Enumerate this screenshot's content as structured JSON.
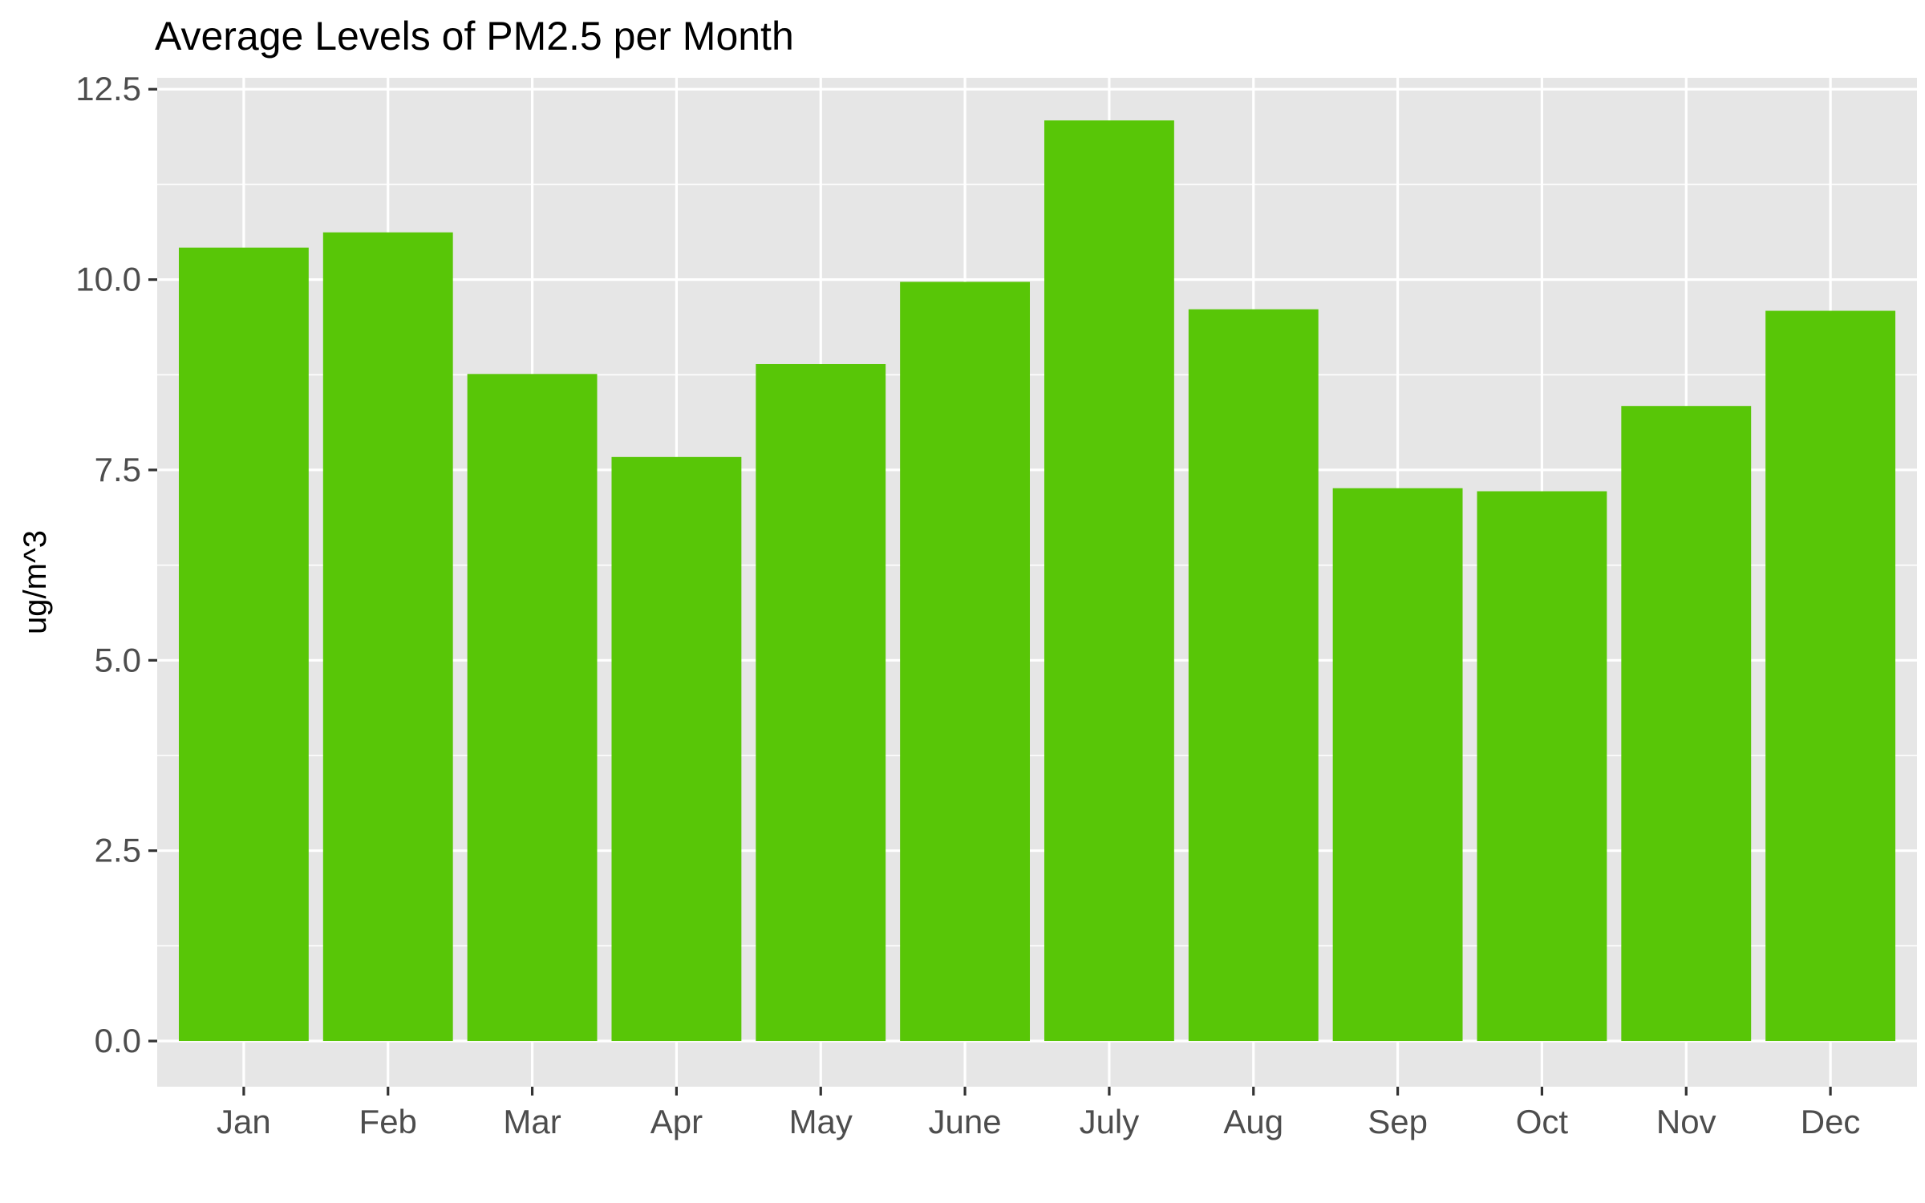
{
  "chart_data": {
    "type": "bar",
    "title": "Average Levels of PM2.5 per Month",
    "xlabel": "",
    "ylabel": "ug/m^3",
    "categories": [
      "Jan",
      "Feb",
      "Mar",
      "Apr",
      "May",
      "June",
      "July",
      "Aug",
      "Sep",
      "Oct",
      "Nov",
      "Dec"
    ],
    "values": [
      10.42,
      10.62,
      8.76,
      7.67,
      8.89,
      9.97,
      12.09,
      9.61,
      7.26,
      7.22,
      8.34,
      9.59
    ],
    "ylim": [
      -0.6,
      12.65
    ],
    "yticks": [
      0,
      2.5,
      5,
      7.5,
      10,
      12.5
    ],
    "ytick_labels": [
      "0.0",
      "2.5",
      "5.0",
      "7.5",
      "10.0",
      "12.5"
    ],
    "grid": true,
    "legend": "none",
    "colors": {
      "bar": "#58c607",
      "panel": "#e6e6e6",
      "grid": "#ffffff"
    }
  }
}
